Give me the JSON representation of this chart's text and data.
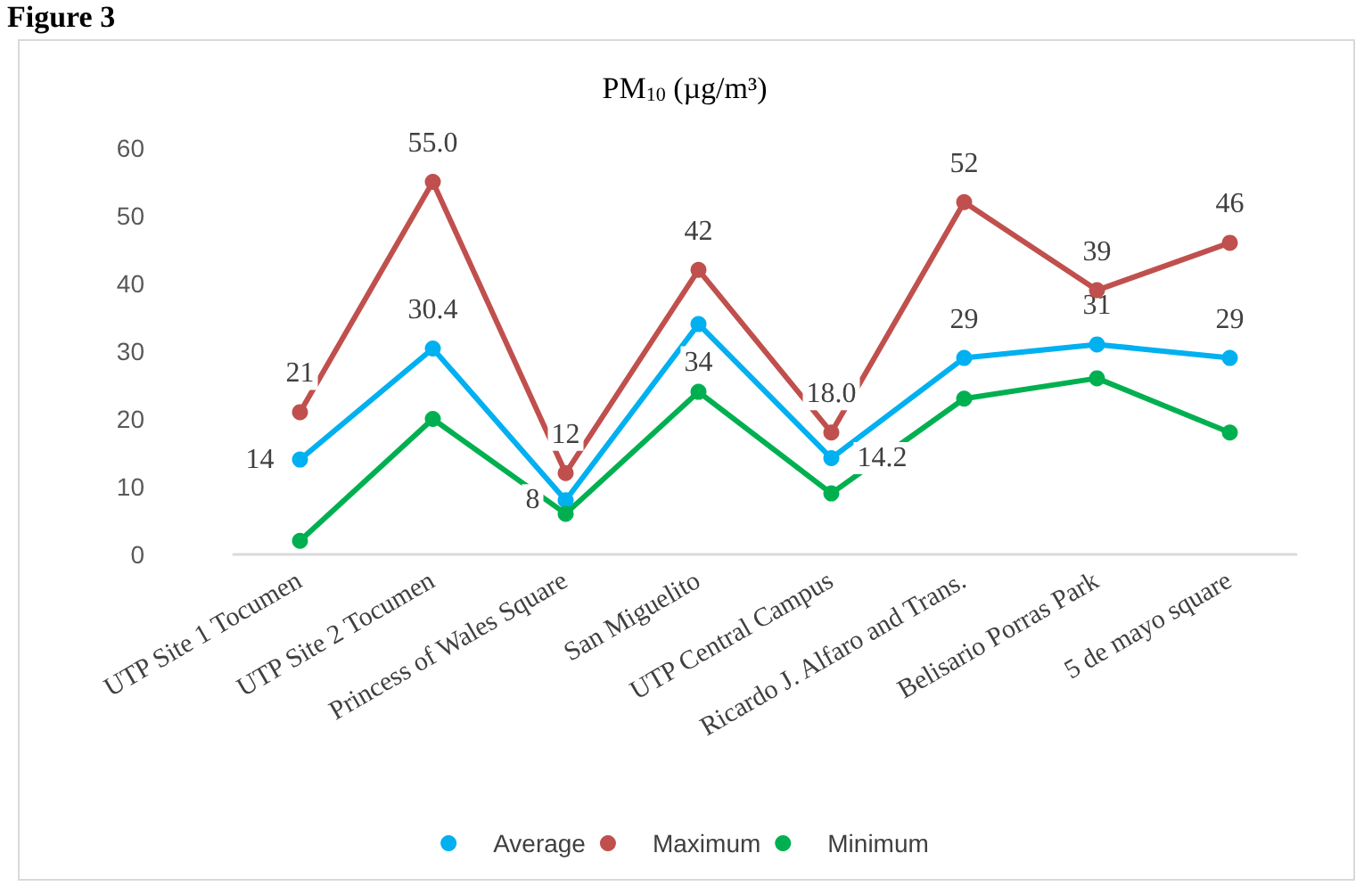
{
  "chart_data": {
    "type": "line",
    "title": "PM$_{10}$ (µg/m³)",
    "annotations": [
      "Figure 3"
    ],
    "categories": [
      "UTP Site 1 Tocumen",
      "UTP Site 2 Tocumen",
      "Princess of Wales Square",
      "San Miguelito",
      "UTP Central Campus",
      "Ricardo J. Alfaro and Trans.",
      "Belisario Porras Park",
      "5 de mayo square"
    ],
    "series": [
      {
        "name": "Average",
        "color": "#00b0f0",
        "values": [
          14,
          30.4,
          8,
          34,
          14.2,
          29,
          31,
          29
        ],
        "value_labels": [
          "14",
          "30.4",
          "8",
          "34",
          "14.2",
          "29",
          "31",
          "29"
        ]
      },
      {
        "name": "Maximum",
        "color": "#c0504d",
        "values": [
          21,
          55.0,
          12,
          42,
          18.0,
          52,
          39,
          46
        ],
        "value_labels": [
          "21",
          "55.0",
          "12",
          "42",
          "18.0",
          "52",
          "39",
          "46"
        ]
      },
      {
        "name": "Minimum",
        "color": "#00b050",
        "values": [
          2,
          20,
          6,
          24,
          9,
          23,
          26,
          18
        ]
      }
    ],
    "ylim": [
      0,
      60
    ],
    "yticks": [
      0,
      10,
      20,
      30,
      40,
      50,
      60
    ],
    "grid": false,
    "legend": "bottom",
    "marker": "circle",
    "line_style": "solid"
  }
}
